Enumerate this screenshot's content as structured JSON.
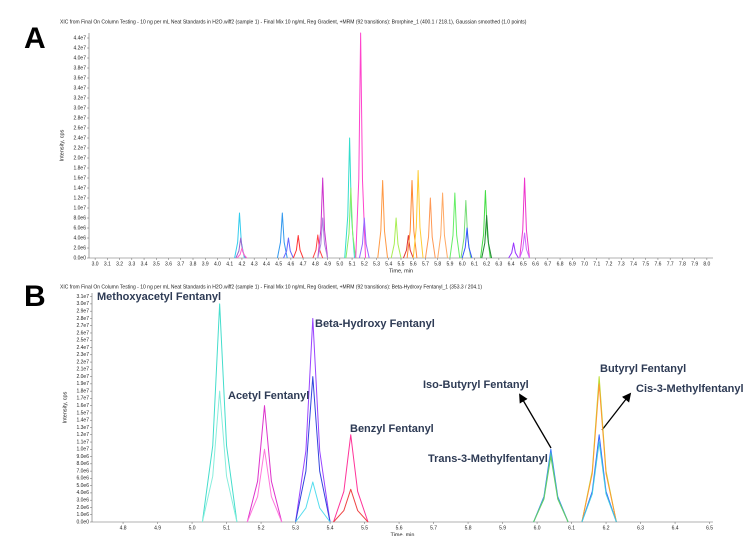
{
  "chart_data": [
    {
      "type": "line",
      "panel_label": "A",
      "title": "XIC from Final On Column Testing - 10 ng per mL Neat Standards in H2O.wiff2 (sample 1) - Final Mix 10 ng/mL Reg Gradient, +MRM (92 transitions): Brorphine_1 (400.1 / 218.1), Gaussian smoothed (1.0 points)",
      "x_label": "Time, min",
      "y_label": "Intensity, cps",
      "xlim": [
        2.95,
        8.05
      ],
      "ylim": [
        0,
        45000000
      ],
      "xticks": [
        {
          "value": 3,
          "label": "3.0"
        },
        3.1,
        3.2,
        3.3,
        3.4,
        3.5,
        3.6,
        3.7,
        3.8,
        3.9,
        {
          "value": 4,
          "label": "4.0"
        },
        4.1,
        4.2,
        4.3,
        4.4,
        4.5,
        4.6,
        4.7,
        4.8,
        4.9,
        {
          "value": 5,
          "label": "5.0"
        },
        5.1,
        5.2,
        5.3,
        5.4,
        5.5,
        5.6,
        5.7,
        5.8,
        5.9,
        {
          "value": 6,
          "label": "6.0"
        },
        6.1,
        6.2,
        6.3,
        6.4,
        6.5,
        6.6,
        6.7,
        6.8,
        6.9,
        {
          "value": 7,
          "label": "7.0"
        },
        7.1,
        7.2,
        7.3,
        7.4,
        7.5,
        7.6,
        7.7,
        7.8,
        7.9,
        {
          "value": 8,
          "label": "8.0"
        }
      ],
      "yticks": [
        {
          "value": 0,
          "label": "0.0e0"
        },
        {
          "value": 2000000,
          "label": "2.0e6"
        },
        {
          "value": 4000000,
          "label": "4.0e6"
        },
        {
          "value": 6000000,
          "label": "6.0e6"
        },
        {
          "value": 8000000,
          "label": "8.0e6"
        },
        {
          "value": 10000000,
          "label": "1.0e7"
        },
        {
          "value": 12000000,
          "label": "1.2e7"
        },
        {
          "value": 14000000,
          "label": "1.4e7"
        },
        {
          "value": 16000000,
          "label": "1.6e7"
        },
        {
          "value": 18000000,
          "label": "1.8e7"
        },
        {
          "value": 20000000,
          "label": "2.0e7"
        },
        {
          "value": 22000000,
          "label": "2.2e7"
        },
        {
          "value": 24000000,
          "label": "2.4e7"
        },
        {
          "value": 26000000,
          "label": "2.6e7"
        },
        {
          "value": 28000000,
          "label": "2.8e7"
        },
        {
          "value": 30000000,
          "label": "3.0e7"
        },
        {
          "value": 32000000,
          "label": "3.2e7"
        },
        {
          "value": 34000000,
          "label": "3.4e7"
        },
        {
          "value": 36000000,
          "label": "3.6e7"
        },
        {
          "value": 38000000,
          "label": "3.8e7"
        },
        {
          "value": 40000000,
          "label": "4.0e7"
        },
        {
          "value": 42000000,
          "label": "4.2e7"
        },
        {
          "value": 44000000,
          "label": "4.4e7"
        }
      ],
      "series": [
        {
          "color": "#33ccee",
          "x": [
            4.14,
            4.165,
            4.18,
            4.195,
            4.22
          ],
          "values": [
            0,
            3150000,
            9000000,
            3150000,
            0
          ]
        },
        {
          "color": "#9966cc",
          "x": [
            4.15,
            4.175,
            4.19,
            4.205,
            4.23
          ],
          "values": [
            0,
            1400000,
            4000000,
            1400000,
            0
          ]
        },
        {
          "color": "#ff66cc",
          "x": [
            4.16,
            4.185,
            4.2,
            4.215,
            4.24
          ],
          "values": [
            0,
            700000,
            2000000,
            700000,
            0
          ]
        },
        {
          "color": "#3399ee",
          "x": [
            4.49,
            4.515,
            4.53,
            4.545,
            4.57
          ],
          "values": [
            0,
            3150000,
            9000000,
            3150000,
            0
          ]
        },
        {
          "color": "#6666ff",
          "x": [
            4.54,
            4.565,
            4.58,
            4.595,
            4.62
          ],
          "values": [
            0,
            1400000,
            4000000,
            1400000,
            0
          ]
        },
        {
          "color": "#ff3333",
          "x": [
            4.62,
            4.645,
            4.66,
            4.675,
            4.7
          ],
          "values": [
            0,
            1575000,
            4500000,
            1575000,
            0
          ]
        },
        {
          "color": "#ff4444",
          "x": [
            4.78,
            4.805,
            4.82,
            4.835,
            4.86
          ],
          "values": [
            0,
            1610000,
            4600000,
            1610000,
            0
          ]
        },
        {
          "color": "#cc33cc",
          "x": [
            4.82,
            4.845,
            4.86,
            4.875,
            4.9
          ],
          "values": [
            0,
            5600000,
            16000000,
            5600000,
            0
          ]
        },
        {
          "color": "#aa88dd",
          "x": [
            4.82,
            4.845,
            4.86,
            4.875,
            4.9
          ],
          "values": [
            0,
            2800000,
            8000000,
            2800000,
            0
          ]
        },
        {
          "color": "#33ddcc",
          "x": [
            5.04,
            5.065,
            5.08,
            5.095,
            5.12
          ],
          "values": [
            0,
            8400000,
            24000000,
            8400000,
            0
          ]
        },
        {
          "color": "#88ee66",
          "x": [
            5.05,
            5.075,
            5.09,
            5.105,
            5.13
          ],
          "values": [
            0,
            4900000,
            14000000,
            4900000,
            0
          ]
        },
        {
          "color": "#ff44cc",
          "x": [
            5.13,
            5.155,
            5.17,
            5.185,
            5.21
          ],
          "values": [
            0,
            15750000,
            45000000,
            15750000,
            0
          ]
        },
        {
          "color": "#9966ff",
          "x": [
            5.16,
            5.185,
            5.2,
            5.215,
            5.24
          ],
          "values": [
            0,
            2800000,
            8000000,
            2800000,
            0
          ]
        },
        {
          "color": "#ff9944",
          "x": [
            5.31,
            5.335,
            5.35,
            5.365,
            5.39
          ],
          "values": [
            0,
            5425000,
            15500000,
            5425000,
            0
          ]
        },
        {
          "color": "#aaee55",
          "x": [
            5.42,
            5.445,
            5.46,
            5.475,
            5.5
          ],
          "values": [
            0,
            2800000,
            8000000,
            2800000,
            0
          ]
        },
        {
          "color": "#dd3333",
          "x": [
            5.52,
            5.545,
            5.56,
            5.575,
            5.6
          ],
          "values": [
            0,
            1575000,
            4500000,
            1575000,
            0
          ]
        },
        {
          "color": "#ff8833",
          "x": [
            5.55,
            5.575,
            5.59,
            5.605,
            5.63
          ],
          "values": [
            0,
            5425000,
            15500000,
            5425000,
            0
          ]
        },
        {
          "color": "#ffcc33",
          "x": [
            5.6,
            5.625,
            5.64,
            5.655,
            5.68
          ],
          "values": [
            0,
            6125000,
            17500000,
            6125000,
            0
          ]
        },
        {
          "color": "#ff9955",
          "x": [
            5.7,
            5.725,
            5.74,
            5.755,
            5.78
          ],
          "values": [
            0,
            4200000,
            12000000,
            4200000,
            0
          ]
        },
        {
          "color": "#ffaa66",
          "x": [
            5.8,
            5.825,
            5.84,
            5.855,
            5.88
          ],
          "values": [
            0,
            4550000,
            13000000,
            4550000,
            0
          ]
        },
        {
          "color": "#66ee66",
          "x": [
            5.9,
            5.925,
            5.94,
            5.955,
            5.98
          ],
          "values": [
            0,
            4550000,
            13000000,
            4550000,
            0
          ]
        },
        {
          "color": "#77dd77",
          "x": [
            5.99,
            6.015,
            6.03,
            6.045,
            6.07
          ],
          "values": [
            0,
            4025000,
            11500000,
            4025000,
            0
          ]
        },
        {
          "color": "#3355ff",
          "x": [
            6,
            6.025,
            6.04,
            6.055,
            6.08
          ],
          "values": [
            0,
            2100000,
            6000000,
            2100000,
            0
          ]
        },
        {
          "color": "#44dd44",
          "x": [
            6.15,
            6.175,
            6.19,
            6.205,
            6.23
          ],
          "values": [
            0,
            4725000,
            13500000,
            4725000,
            0
          ]
        },
        {
          "color": "#228833",
          "x": [
            6.16,
            6.185,
            6.2,
            6.215,
            6.24
          ],
          "values": [
            0,
            2975000,
            8500000,
            2975000,
            0
          ]
        },
        {
          "color": "#9933ff",
          "x": [
            6.38,
            6.405,
            6.42,
            6.435,
            6.46
          ],
          "values": [
            0,
            1050000,
            3000000,
            1050000,
            0
          ]
        },
        {
          "color": "#ee33cc",
          "x": [
            6.47,
            6.495,
            6.51,
            6.525,
            6.55
          ],
          "values": [
            0,
            5600000,
            16000000,
            5600000,
            0
          ]
        },
        {
          "color": "#cc66ff",
          "x": [
            6.47,
            6.495,
            6.51,
            6.525,
            6.55
          ],
          "values": [
            0,
            1750000,
            5000000,
            1750000,
            0
          ]
        }
      ]
    },
    {
      "type": "line",
      "panel_label": "B",
      "title": "XIC from Final On Column Testing - 10 ng per mL Neat Standards in H2O.wiff2 (sample 1) - Final Mix 10 ng/mL Reg Gradient, +MRM (92 transitions): Beta-Hydroxy Fentanyl_1 (353.3 / 204.1)",
      "x_label": "Time, min",
      "y_label": "Intensity, cps",
      "xlim": [
        4.71,
        6.51
      ],
      "ylim": [
        0,
        31500000
      ],
      "xticks": [
        4.8,
        4.9,
        {
          "value": 5,
          "label": "5.0"
        },
        5.1,
        5.2,
        5.3,
        5.4,
        5.5,
        5.6,
        5.7,
        5.8,
        5.9,
        {
          "value": 6,
          "label": "6.0"
        },
        6.1,
        6.2,
        6.3,
        6.4,
        6.5
      ],
      "yticks": [
        {
          "value": 0,
          "label": "0.0e0"
        },
        {
          "value": 1000000,
          "label": "1.0e6"
        },
        {
          "value": 2000000,
          "label": "2.0e6"
        },
        {
          "value": 3000000,
          "label": "3.0e6"
        },
        {
          "value": 4000000,
          "label": "4.0e6"
        },
        {
          "value": 5000000,
          "label": "5.0e6"
        },
        {
          "value": 6000000,
          "label": "6.0e6"
        },
        {
          "value": 7000000,
          "label": "7.0e6"
        },
        {
          "value": 8000000,
          "label": "8.0e6"
        },
        {
          "value": 9000000,
          "label": "9.0e6"
        },
        {
          "value": 10000000,
          "label": "1.0e7"
        },
        {
          "value": 11000000,
          "label": "1.1e7"
        },
        {
          "value": 12000000,
          "label": "1.2e7"
        },
        {
          "value": 13000000,
          "label": "1.3e7"
        },
        {
          "value": 14000000,
          "label": "1.4e7"
        },
        {
          "value": 15000000,
          "label": "1.5e7"
        },
        {
          "value": 16000000,
          "label": "1.6e7"
        },
        {
          "value": 17000000,
          "label": "1.7e7"
        },
        {
          "value": 18000000,
          "label": "1.8e7"
        },
        {
          "value": 19000000,
          "label": "1.9e7"
        },
        {
          "value": 20000000,
          "label": "2.0e7"
        },
        {
          "value": 21000000,
          "label": "2.1e7"
        },
        {
          "value": 22000000,
          "label": "2.2e7"
        },
        {
          "value": 23000000,
          "label": "2.3e7"
        },
        {
          "value": 24000000,
          "label": "2.4e7"
        },
        {
          "value": 25000000,
          "label": "2.5e7"
        },
        {
          "value": 26000000,
          "label": "2.6e7"
        },
        {
          "value": 27000000,
          "label": "2.7e7"
        },
        {
          "value": 28000000,
          "label": "2.8e7"
        },
        {
          "value": 29000000,
          "label": "2.9e7"
        },
        {
          "value": 30000000,
          "label": "3.0e7"
        },
        {
          "value": 31000000,
          "label": "3.1e7"
        }
      ],
      "annotations": [
        "Methoxyacetyl Fentanyl",
        "Acetyl Fentanyl",
        "Beta-Hydroxy Fentanyl",
        "Benzyl Fentanyl",
        "Iso-Butyryl Fentanyl",
        "Trans-3-Methylfentanyl",
        "Butyryl Fentanyl",
        "Cis-3-Methylfentanyl"
      ],
      "series": [
        {
          "color": "#44ddcc",
          "x": [
            5.03,
            5.06,
            5.08,
            5.1,
            5.13
          ],
          "values": [
            0,
            10500000,
            30000000,
            10500000,
            0
          ]
        },
        {
          "color": "#88eedd",
          "x": [
            5.03,
            5.06,
            5.08,
            5.1,
            5.13
          ],
          "values": [
            0,
            6300000,
            18000000,
            6300000,
            0
          ]
        },
        {
          "color": "#dd33cc",
          "x": [
            5.16,
            5.19,
            5.21,
            5.23,
            5.26
          ],
          "values": [
            0,
            5600000,
            16000000,
            5600000,
            0
          ]
        },
        {
          "color": "#ff77dd",
          "x": [
            5.16,
            5.19,
            5.21,
            5.23,
            5.26
          ],
          "values": [
            0,
            3500000,
            10000000,
            3500000,
            0
          ]
        },
        {
          "color": "#9944ff",
          "x": [
            5.3,
            5.33,
            5.35,
            5.37,
            5.4
          ],
          "values": [
            0,
            9800000,
            28000000,
            9800000,
            0
          ]
        },
        {
          "color": "#3344dd",
          "x": [
            5.3,
            5.33,
            5.35,
            5.37,
            5.4
          ],
          "values": [
            0,
            7000000,
            20000000,
            7000000,
            0
          ]
        },
        {
          "color": "#55ddee",
          "x": [
            5.3,
            5.33,
            5.35,
            5.37,
            5.4
          ],
          "values": [
            0,
            1925000,
            5500000,
            1925000,
            0
          ]
        },
        {
          "color": "#ff3399",
          "x": [
            5.41,
            5.44,
            5.46,
            5.48,
            5.51
          ],
          "values": [
            0,
            4200000,
            12000000,
            4200000,
            0
          ]
        },
        {
          "color": "#ee4444",
          "x": [
            5.41,
            5.44,
            5.46,
            5.48,
            5.51
          ],
          "values": [
            0,
            1575000,
            4500000,
            1575000,
            0
          ]
        },
        {
          "color": "#3377ff",
          "x": [
            5.99,
            6.02,
            6.04,
            6.06,
            6.09
          ],
          "values": [
            0,
            3500000,
            10000000,
            3500000,
            0
          ]
        },
        {
          "color": "#44bbbb",
          "x": [
            5.99,
            6.02,
            6.04,
            6.06,
            6.09
          ],
          "values": [
            0,
            3325000,
            9500000,
            3325000,
            0
          ]
        },
        {
          "color": "#66cc66",
          "x": [
            5.99,
            6.02,
            6.04,
            6.06,
            6.09
          ],
          "values": [
            0,
            3150000,
            9000000,
            3150000,
            0
          ]
        },
        {
          "color": "#bbdd33",
          "x": [
            6.13,
            6.16,
            6.18,
            6.2,
            6.23
          ],
          "values": [
            0,
            7000000,
            20000000,
            7000000,
            0
          ]
        },
        {
          "color": "#ff9933",
          "x": [
            6.13,
            6.16,
            6.18,
            6.2,
            6.23
          ],
          "values": [
            0,
            6650000,
            19000000,
            6650000,
            0
          ]
        },
        {
          "color": "#3366ff",
          "x": [
            6.13,
            6.16,
            6.18,
            6.2,
            6.23
          ],
          "values": [
            0,
            4200000,
            12000000,
            4200000,
            0
          ]
        },
        {
          "color": "#44ccdd",
          "x": [
            6.13,
            6.16,
            6.18,
            6.2,
            6.23
          ],
          "values": [
            0,
            3850000,
            11000000,
            3850000,
            0
          ]
        }
      ]
    }
  ]
}
